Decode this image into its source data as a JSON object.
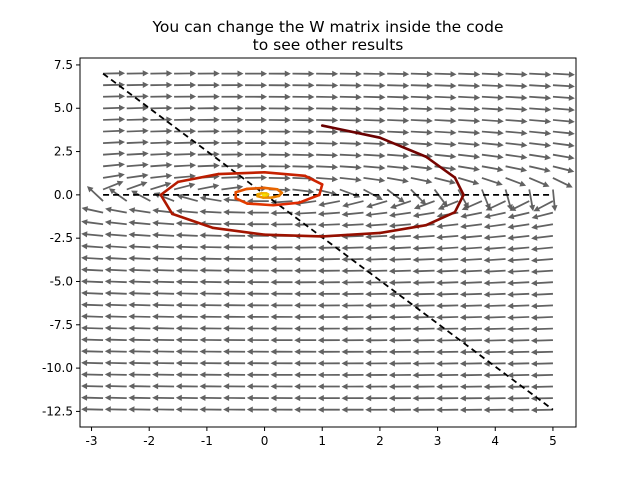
{
  "chart_data": {
    "type": "line",
    "title": [
      "You can change the W matrix inside the code",
      "to see other results"
    ],
    "xlabel": "",
    "ylabel": "",
    "xlim": [
      -3.2,
      5.4
    ],
    "ylim": [
      -13.4,
      7.9
    ],
    "xticks": [
      -3,
      -2,
      -1,
      0,
      1,
      2,
      3,
      4,
      5
    ],
    "xtick_labels": [
      "-3",
      "-2",
      "-1",
      "0",
      "1",
      "2",
      "3",
      "4",
      "5"
    ],
    "yticks": [
      7.5,
      5.0,
      2.5,
      0.0,
      -2.5,
      -5.0,
      -7.5,
      -10.0,
      -12.5
    ],
    "ytick_labels": [
      "7.5",
      "5.0",
      "2.5",
      "0.0",
      "-2.5",
      "-5.0",
      "-7.5",
      "-10.0",
      "-12.5"
    ],
    "grid": false,
    "legend": false,
    "vector_field": {
      "x_range": [
        -2.8,
        5.0
      ],
      "y_range": [
        -12.4,
        7.0
      ],
      "nx": 20,
      "ny": 30,
      "color": "#555555"
    },
    "dashed_lines": [
      {
        "x": [
          -2.8,
          5.0
        ],
        "y": [
          0.0,
          0.0
        ],
        "color": "#000000"
      },
      {
        "x": [
          -2.8,
          5.0
        ],
        "y": [
          7.0,
          -12.4
        ],
        "color": "#000000"
      }
    ],
    "trajectory": {
      "start": [
        1.0,
        4.0
      ],
      "end": [
        0.0,
        0.0
      ],
      "color_start": "#6a0000",
      "color_mid": "#e02a00",
      "color_end": "#f5e000",
      "points": [
        [
          1.0,
          4.0
        ],
        [
          2.0,
          3.3
        ],
        [
          2.8,
          2.2
        ],
        [
          3.3,
          1.0
        ],
        [
          3.45,
          0.0
        ],
        [
          3.3,
          -1.0
        ],
        [
          2.8,
          -1.75
        ],
        [
          2.0,
          -2.2
        ],
        [
          1.0,
          -2.4
        ],
        [
          0.0,
          -2.3
        ],
        [
          -0.9,
          -1.9
        ],
        [
          -1.6,
          -1.1
        ],
        [
          -1.8,
          0.0
        ],
        [
          -1.5,
          0.75
        ],
        [
          -0.8,
          1.2
        ],
        [
          0.0,
          1.3
        ],
        [
          0.7,
          1.1
        ],
        [
          1.0,
          0.6
        ],
        [
          0.95,
          0.0
        ],
        [
          0.6,
          -0.45
        ],
        [
          0.15,
          -0.6
        ],
        [
          -0.3,
          -0.5
        ],
        [
          -0.5,
          -0.2
        ],
        [
          -0.5,
          0.15
        ],
        [
          -0.3,
          0.35
        ],
        [
          0.0,
          0.4
        ],
        [
          0.22,
          0.32
        ],
        [
          0.3,
          0.12
        ],
        [
          0.25,
          -0.06
        ],
        [
          0.12,
          -0.16
        ],
        [
          -0.02,
          -0.16
        ],
        [
          -0.12,
          -0.08
        ],
        [
          -0.12,
          0.03
        ],
        [
          -0.05,
          0.09
        ],
        [
          0.03,
          0.08
        ],
        [
          0.06,
          0.03
        ],
        [
          0.04,
          -0.02
        ],
        [
          0.0,
          -0.03
        ],
        [
          -0.02,
          -0.01
        ],
        [
          0.0,
          0.0
        ]
      ]
    }
  }
}
